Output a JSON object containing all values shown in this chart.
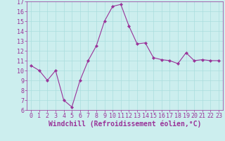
{
  "x": [
    0,
    1,
    2,
    3,
    4,
    5,
    6,
    7,
    8,
    9,
    10,
    11,
    12,
    13,
    14,
    15,
    16,
    17,
    18,
    19,
    20,
    21,
    22,
    23
  ],
  "y": [
    10.5,
    10.0,
    9.0,
    10.0,
    7.0,
    6.3,
    9.0,
    11.0,
    12.5,
    15.0,
    16.5,
    16.7,
    14.5,
    12.7,
    12.8,
    11.3,
    11.1,
    11.0,
    10.7,
    11.8,
    11.0,
    11.1,
    11.0,
    11.0
  ],
  "line_color": "#993399",
  "marker": "D",
  "marker_size": 2.2,
  "bg_color": "#cceeee",
  "grid_color": "#aadddd",
  "xlabel": "Windchill (Refroidissement éolien,°C)",
  "ylim": [
    6,
    17
  ],
  "xlim_min": -0.5,
  "xlim_max": 23.5,
  "yticks": [
    6,
    7,
    8,
    9,
    10,
    11,
    12,
    13,
    14,
    15,
    16,
    17
  ],
  "xticks": [
    0,
    1,
    2,
    3,
    4,
    5,
    6,
    7,
    8,
    9,
    10,
    11,
    12,
    13,
    14,
    15,
    16,
    17,
    18,
    19,
    20,
    21,
    22,
    23
  ],
  "xlabel_fontsize": 7,
  "tick_fontsize": 6,
  "label_color": "#993399"
}
